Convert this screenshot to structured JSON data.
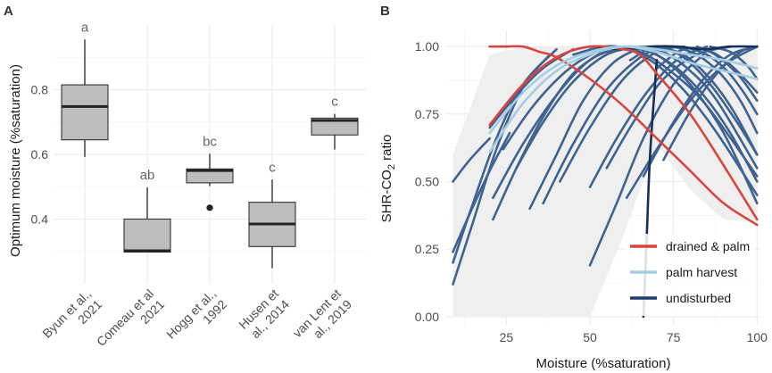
{
  "chart_data": [
    {
      "panel_label": "A",
      "type": "box",
      "title": "",
      "xlabel": "",
      "ylabel": "Optimum moisture (%saturation)",
      "ylim": [
        0.2,
        1.0
      ],
      "yticks": [
        0.4,
        0.6,
        0.8
      ],
      "ytick_labels": [
        "0.4",
        "0.6",
        "0.8"
      ],
      "grid": true,
      "categories": [
        {
          "label_lines": [
            "Byun et al.,",
            "2021"
          ],
          "letter": "a",
          "q1": 0.645,
          "median": 0.748,
          "q3": 0.815,
          "whisker_low": 0.592,
          "whisker_high": 0.955,
          "outliers": []
        },
        {
          "label_lines": [
            "Comeau et al",
            "2021"
          ],
          "letter": "ab",
          "q1": 0.298,
          "median": 0.302,
          "q3": 0.4,
          "whisker_low": 0.298,
          "whisker_high": 0.498,
          "outliers": []
        },
        {
          "label_lines": [
            "Hogg et al.,",
            "1992"
          ],
          "letter": "bc",
          "q1": 0.512,
          "median": 0.55,
          "q3": 0.555,
          "whisker_low": 0.502,
          "whisker_high": 0.602,
          "outliers": [
            0.435
          ]
        },
        {
          "label_lines": [
            "Husen et",
            "al., 2014"
          ],
          "letter": "c",
          "q1": 0.315,
          "median": 0.385,
          "q3": 0.452,
          "whisker_low": 0.248,
          "whisker_high": 0.522,
          "outliers": []
        },
        {
          "label_lines": [
            "van Lent et",
            "al., 2019"
          ],
          "letter": "c",
          "q1": 0.66,
          "median": 0.705,
          "q3": 0.712,
          "whisker_low": 0.615,
          "whisker_high": 0.725,
          "outliers": []
        }
      ],
      "colors": {
        "box_fill": "#bdbdbd",
        "box_stroke": "#333333",
        "grid": "#ebebeb",
        "letter": "#666666"
      }
    },
    {
      "panel_label": "B",
      "type": "line",
      "title": "",
      "xlabel": "Moisture (%saturation)",
      "ylabel": "SHR-CO₂ ratio",
      "ylabel_parts": [
        "SHR-CO",
        "2",
        " ratio"
      ],
      "xlim": [
        7,
        101
      ],
      "ylim": [
        -0.03,
        1.06
      ],
      "xticks": [
        25,
        50,
        75,
        100
      ],
      "xtick_labels": [
        "25",
        "50",
        "75",
        "100"
      ],
      "yticks": [
        0.0,
        0.25,
        0.5,
        0.75,
        1.0
      ],
      "ytick_labels": [
        "0.00",
        "0.25",
        "0.50",
        "0.75",
        "1.00"
      ],
      "grid": true,
      "legend_position": "bottom-right",
      "legend": [
        {
          "label": "drained & palm",
          "color": "#d8453f"
        },
        {
          "label": "palm harvest",
          "color": "#a6cde3"
        },
        {
          "label": "undisturbed",
          "color": "#1c3c6e"
        }
      ],
      "envelope": {
        "x": [
          9,
          20,
          30,
          40,
          50,
          60,
          70,
          80,
          90,
          95,
          100,
          100,
          90,
          80,
          70,
          60,
          50,
          45,
          40,
          30,
          20,
          9
        ],
        "upper": [
          0.6,
          0.97,
          1.0,
          1.0,
          1.0,
          1.0,
          1.0,
          1.0,
          1.0,
          1.0,
          1.0,
          0.35,
          0.36,
          0.47,
          0.64,
          0.3,
          0.0,
          0.0,
          0.0,
          0.0,
          0.0,
          0.0
        ],
        "color": "#efefef"
      },
      "series": [
        {
          "group": "undisturbed",
          "color": "#3f6390",
          "x": [
            9,
            15,
            22,
            30,
            38
          ],
          "y": [
            0.12,
            0.35,
            0.62,
            0.85,
            0.97
          ]
        },
        {
          "group": "undisturbed",
          "color": "#3f6390",
          "x": [
            9,
            15,
            22,
            30,
            40
          ],
          "y": [
            0.2,
            0.42,
            0.66,
            0.86,
            0.99
          ]
        },
        {
          "group": "undisturbed",
          "color": "#3f6390",
          "x": [
            9,
            14,
            20,
            26
          ],
          "y": [
            0.24,
            0.38,
            0.54,
            0.68
          ]
        },
        {
          "group": "undisturbed",
          "color": "#3f6390",
          "x": [
            9,
            14,
            20
          ],
          "y": [
            0.5,
            0.58,
            0.66
          ]
        },
        {
          "group": "undisturbed",
          "color": "#3f6390",
          "x": [
            21,
            28,
            36,
            45,
            55
          ],
          "y": [
            0.36,
            0.55,
            0.74,
            0.9,
            0.99
          ]
        },
        {
          "group": "undisturbed",
          "color": "#3f6390",
          "x": [
            21,
            30,
            40,
            50,
            60
          ],
          "y": [
            0.44,
            0.64,
            0.82,
            0.95,
            1.0
          ]
        },
        {
          "group": "undisturbed",
          "color": "#3f6390",
          "x": [
            20,
            28,
            36,
            45
          ],
          "y": [
            0.7,
            0.82,
            0.92,
            0.99
          ]
        },
        {
          "group": "undisturbed",
          "color": "#3f6390",
          "x": [
            24,
            33,
            43,
            52,
            60
          ],
          "y": [
            0.62,
            0.78,
            0.91,
            0.98,
            1.0
          ]
        },
        {
          "group": "undisturbed",
          "color": "#3f6390",
          "x": [
            28,
            36,
            45,
            55,
            65
          ],
          "y": [
            0.55,
            0.72,
            0.87,
            0.97,
            1.0
          ]
        },
        {
          "group": "undisturbed",
          "color": "#3f6390",
          "x": [
            32,
            40,
            48,
            57,
            66
          ],
          "y": [
            0.4,
            0.6,
            0.8,
            0.94,
            1.0
          ]
        },
        {
          "group": "undisturbed",
          "color": "#3f6390",
          "x": [
            36,
            45,
            55,
            65,
            72
          ],
          "y": [
            0.42,
            0.64,
            0.84,
            0.96,
            1.0
          ]
        },
        {
          "group": "undisturbed",
          "color": "#3f6390",
          "x": [
            41,
            50,
            60,
            70,
            78
          ],
          "y": [
            0.5,
            0.7,
            0.88,
            0.98,
            1.0
          ]
        },
        {
          "group": "undisturbed",
          "color": "#3f6390",
          "x": [
            50,
            58,
            66,
            75,
            84
          ],
          "y": [
            0.19,
            0.42,
            0.66,
            0.86,
            0.97
          ]
        },
        {
          "group": "undisturbed",
          "color": "#3f6390",
          "x": [
            50,
            58,
            67,
            76,
            85
          ],
          "y": [
            0.48,
            0.66,
            0.83,
            0.95,
            1.0
          ]
        },
        {
          "group": "undisturbed",
          "color": "#3f6390",
          "x": [
            55,
            63,
            72,
            82,
            92
          ],
          "y": [
            0.55,
            0.72,
            0.88,
            0.97,
            1.0
          ]
        },
        {
          "group": "undisturbed",
          "color": "#3f6390",
          "x": [
            61,
            70,
            80,
            90,
            100
          ],
          "y": [
            0.44,
            0.62,
            0.8,
            0.93,
            1.0
          ]
        },
        {
          "group": "undisturbed",
          "color": "#3f6390",
          "x": [
            66,
            75,
            84,
            92,
            100
          ],
          "y": [
            0.52,
            0.72,
            0.88,
            0.97,
            1.0
          ]
        },
        {
          "group": "undisturbed",
          "color": "#3f6390",
          "x": [
            72,
            80,
            88,
            95,
            100
          ],
          "y": [
            0.58,
            0.76,
            0.9,
            0.98,
            1.0
          ]
        },
        {
          "group": "undisturbed",
          "color": "#3f6390",
          "x": [
            55,
            62,
            70,
            80,
            90,
            100
          ],
          "y": [
            0.98,
            1.0,
            0.97,
            0.86,
            0.68,
            0.42
          ]
        },
        {
          "group": "undisturbed",
          "color": "#3f6390",
          "x": [
            50,
            58,
            68,
            78,
            88,
            100
          ],
          "y": [
            0.99,
            1.0,
            0.95,
            0.84,
            0.68,
            0.45
          ]
        },
        {
          "group": "undisturbed",
          "color": "#3f6390",
          "x": [
            45,
            55,
            65,
            75,
            85,
            100
          ],
          "y": [
            0.97,
            1.0,
            0.98,
            0.9,
            0.78,
            0.52
          ]
        },
        {
          "group": "undisturbed",
          "color": "#3f6390",
          "x": [
            60,
            68,
            76,
            84,
            92,
            100
          ],
          "y": [
            1.0,
            0.98,
            0.92,
            0.82,
            0.68,
            0.5
          ]
        },
        {
          "group": "undisturbed",
          "color": "#3f6390",
          "x": [
            65,
            72,
            80,
            88,
            100
          ],
          "y": [
            1.0,
            0.98,
            0.91,
            0.8,
            0.55
          ]
        },
        {
          "group": "undisturbed",
          "color": "#3f6390",
          "x": [
            70,
            78,
            86,
            93,
            100
          ],
          "y": [
            1.0,
            0.97,
            0.88,
            0.76,
            0.6
          ]
        },
        {
          "group": "undisturbed",
          "color": "#3f6390",
          "x": [
            75,
            82,
            89,
            95,
            100
          ],
          "y": [
            1.0,
            0.97,
            0.9,
            0.8,
            0.68
          ]
        },
        {
          "group": "undisturbed",
          "color": "#3f6390",
          "x": [
            78,
            85,
            91,
            96,
            100
          ],
          "y": [
            1.0,
            0.97,
            0.91,
            0.83,
            0.75
          ]
        },
        {
          "group": "undisturbed",
          "color": "#3f6390",
          "x": [
            82,
            88,
            94,
            100
          ],
          "y": [
            1.0,
            0.97,
            0.91,
            0.83
          ]
        },
        {
          "group": "undisturbed",
          "color": "#3f6390",
          "x": [
            86,
            92,
            97,
            100
          ],
          "y": [
            1.0,
            0.98,
            0.93,
            0.88
          ]
        },
        {
          "group": "undisturbed",
          "color": "#3f6390",
          "x": [
            70,
            78,
            86,
            94,
            100
          ],
          "y": [
            0.92,
            0.99,
            0.98,
            0.9,
            0.8
          ]
        },
        {
          "group": "undisturbed",
          "color": "#3f6390",
          "x": [
            62,
            70,
            78,
            86,
            94,
            100
          ],
          "y": [
            0.95,
            1.0,
            0.96,
            0.86,
            0.72,
            0.6
          ]
        },
        {
          "group": "undisturbed",
          "color": "#14305c",
          "x": [
            52,
            60,
            68,
            76,
            84,
            92,
            100
          ],
          "y": [
            1.0,
            0.99,
            1.0,
            1.0,
            0.99,
            1.0,
            1.0
          ]
        },
        {
          "group": "undisturbed",
          "color": "#14305c",
          "x": [
            66,
            67,
            68,
            70
          ],
          "y": [
            0.0,
            0.3,
            0.6,
            0.95
          ]
        },
        {
          "group": "drained & palm",
          "color": "#d8453f",
          "x": [
            20,
            25,
            30,
            35,
            40,
            50,
            60,
            70,
            80,
            90,
            100
          ],
          "y": [
            1.0,
            1.0,
            1.0,
            0.98,
            0.96,
            0.88,
            0.78,
            0.66,
            0.54,
            0.42,
            0.34
          ]
        },
        {
          "group": "drained & palm",
          "color": "#d8453f",
          "x": [
            20,
            30,
            40,
            50,
            60,
            65,
            70,
            80,
            90,
            100
          ],
          "y": [
            0.71,
            0.86,
            0.96,
            1.0,
            0.99,
            0.97,
            0.9,
            0.75,
            0.56,
            0.36
          ]
        },
        {
          "group": "palm harvest",
          "color": "#a6cde3",
          "x": [
            20,
            30,
            40,
            50,
            60,
            70,
            80,
            90,
            100
          ],
          "y": [
            0.61,
            0.79,
            0.91,
            0.97,
            1.0,
            0.99,
            0.97,
            0.95,
            0.92
          ]
        },
        {
          "group": "palm harvest",
          "color": "#a6cde3",
          "x": [
            20,
            30,
            40,
            50,
            60,
            70,
            80,
            90,
            100
          ],
          "y": [
            0.68,
            0.83,
            0.93,
            0.98,
            1.0,
            0.98,
            0.94,
            0.91,
            0.88
          ]
        }
      ]
    }
  ]
}
